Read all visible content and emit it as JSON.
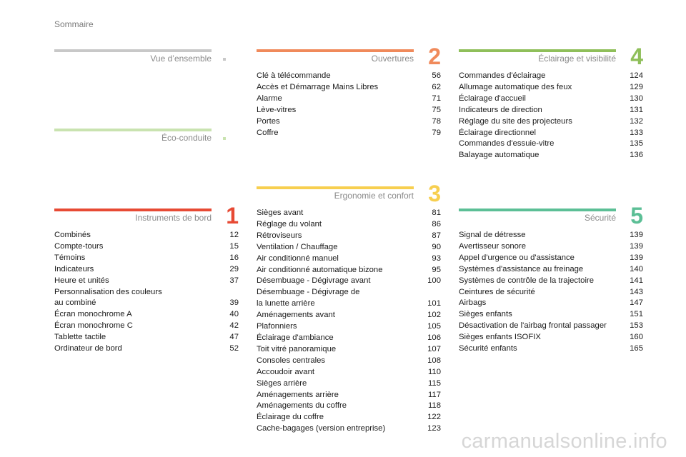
{
  "page_title": "Sommaire",
  "watermark": "carmanualsonline.info",
  "sections": {
    "vue": {
      "title": "Vue d’ensemble",
      "color": "#c8c8c8",
      "dot_color": "#c8c8c8",
      "entries": []
    },
    "eco": {
      "title": "Éco-conduite",
      "color": "#c9e3b0",
      "dot_color": "#c9e3b0",
      "entries": []
    },
    "instruments": {
      "title": "Instruments de bord",
      "number": "1",
      "color": "#e74a34",
      "entries": [
        {
          "t": "Combinés",
          "p": "12"
        },
        {
          "t": "Compte-tours",
          "p": "15"
        },
        {
          "t": "Témoins",
          "p": "16"
        },
        {
          "t": "Indicateurs",
          "p": "29"
        },
        {
          "t": "Heure et unités",
          "p": "37"
        },
        {
          "t": "Personnalisation des couleurs\n   au combiné",
          "p": "39"
        },
        {
          "t": "Écran monochrome A",
          "p": "40"
        },
        {
          "t": "Écran monochrome C",
          "p": "42"
        },
        {
          "t": "Tablette tactile",
          "p": "47"
        },
        {
          "t": "Ordinateur de bord",
          "p": "52"
        }
      ]
    },
    "ouvertures": {
      "title": "Ouvertures",
      "number": "2",
      "color": "#f08a5b",
      "entries": [
        {
          "t": "Clé à télécommande",
          "p": "56"
        },
        {
          "t": "Accès et Démarrage Mains Libres",
          "p": "62"
        },
        {
          "t": "Alarme",
          "p": "71"
        },
        {
          "t": "Lève-vitres",
          "p": "75"
        },
        {
          "t": "Portes",
          "p": "78"
        },
        {
          "t": "Coffre",
          "p": "79"
        }
      ]
    },
    "ergonomie": {
      "title": "Ergonomie et confort",
      "number": "3",
      "color": "#f7cf4f",
      "entries": [
        {
          "t": "Sièges avant",
          "p": "81"
        },
        {
          "t": "Réglage du volant",
          "p": "86"
        },
        {
          "t": "Rétroviseurs",
          "p": "87"
        },
        {
          "t": "Ventilation / Chauffage",
          "p": "90"
        },
        {
          "t": "Air conditionné manuel",
          "p": "93"
        },
        {
          "t": "Air conditionné automatique bizone",
          "p": "95"
        },
        {
          "t": "Désembuage - Dégivrage avant",
          "p": "100"
        },
        {
          "t": "Désembuage - Dégivrage de\n   la lunette arrière",
          "p": "101"
        },
        {
          "t": "Aménagements avant",
          "p": "102"
        },
        {
          "t": "Plafonniers",
          "p": "105"
        },
        {
          "t": "Éclairage d'ambiance",
          "p": "106"
        },
        {
          "t": "Toit vitré panoramique",
          "p": "107"
        },
        {
          "t": "Consoles centrales",
          "p": "108"
        },
        {
          "t": "Accoudoir avant",
          "p": "110"
        },
        {
          "t": "Sièges arrière",
          "p": "115"
        },
        {
          "t": "Aménagements arrière",
          "p": "117"
        },
        {
          "t": "Aménagements du coffre",
          "p": "118"
        },
        {
          "t": "Éclairage du coffre",
          "p": "122"
        },
        {
          "t": "Cache-bagages (version entreprise)",
          "p": "123"
        }
      ]
    },
    "eclairage": {
      "title": "Éclairage et visibilité",
      "number": "4",
      "color": "#8fbf5a",
      "entries": [
        {
          "t": "Commandes d'éclairage",
          "p": "124"
        },
        {
          "t": "Allumage automatique des feux",
          "p": "129"
        },
        {
          "t": "Éclairage d'accueil",
          "p": "130"
        },
        {
          "t": "Indicateurs de direction",
          "p": "131"
        },
        {
          "t": "Réglage du site des projecteurs",
          "p": "132"
        },
        {
          "t": "Éclairage directionnel",
          "p": "133"
        },
        {
          "t": "Commandes d'essuie-vitre",
          "p": "135"
        },
        {
          "t": "Balayage automatique",
          "p": "136"
        }
      ]
    },
    "securite": {
      "title": "Sécurité",
      "number": "5",
      "color": "#5cbf96",
      "entries": [
        {
          "t": "Signal de détresse",
          "p": "139"
        },
        {
          "t": "Avertisseur sonore",
          "p": "139"
        },
        {
          "t": "Appel d'urgence ou d'assistance",
          "p": "139"
        },
        {
          "t": "Systèmes d'assistance au freinage",
          "p": "140"
        },
        {
          "t": "Systèmes de contrôle de la trajectoire",
          "p": "141"
        },
        {
          "t": "Ceintures de sécurité",
          "p": "143"
        },
        {
          "t": "Airbags",
          "p": "147"
        },
        {
          "t": "Sièges enfants",
          "p": "151"
        },
        {
          "t": "Désactivation de l'airbag frontal passager",
          "p": "153"
        },
        {
          "t": "Sièges enfants ISOFIX",
          "p": "160"
        },
        {
          "t": "Sécurité enfants",
          "p": "165"
        }
      ]
    }
  }
}
